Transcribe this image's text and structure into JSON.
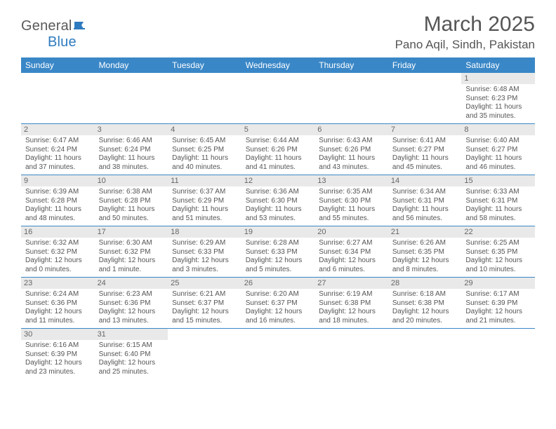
{
  "logo": {
    "text_general": "General",
    "text_blue": "Blue"
  },
  "title": {
    "month": "March 2025",
    "location": "Pano Aqil, Sindh, Pakistan"
  },
  "weekdays": [
    "Sunday",
    "Monday",
    "Tuesday",
    "Wednesday",
    "Thursday",
    "Friday",
    "Saturday"
  ],
  "colors": {
    "header_bg": "#3a87c7",
    "header_text": "#ffffff",
    "daynum_bg": "#e9e9e9",
    "text": "#555555",
    "rule": "#3a87c7"
  },
  "weeks": [
    [
      {
        "empty": true
      },
      {
        "empty": true
      },
      {
        "empty": true
      },
      {
        "empty": true
      },
      {
        "empty": true
      },
      {
        "empty": true
      },
      {
        "day": "1",
        "sunrise": "Sunrise: 6:48 AM",
        "sunset": "Sunset: 6:23 PM",
        "daylight": "Daylight: 11 hours and 35 minutes."
      }
    ],
    [
      {
        "day": "2",
        "sunrise": "Sunrise: 6:47 AM",
        "sunset": "Sunset: 6:24 PM",
        "daylight": "Daylight: 11 hours and 37 minutes."
      },
      {
        "day": "3",
        "sunrise": "Sunrise: 6:46 AM",
        "sunset": "Sunset: 6:24 PM",
        "daylight": "Daylight: 11 hours and 38 minutes."
      },
      {
        "day": "4",
        "sunrise": "Sunrise: 6:45 AM",
        "sunset": "Sunset: 6:25 PM",
        "daylight": "Daylight: 11 hours and 40 minutes."
      },
      {
        "day": "5",
        "sunrise": "Sunrise: 6:44 AM",
        "sunset": "Sunset: 6:26 PM",
        "daylight": "Daylight: 11 hours and 41 minutes."
      },
      {
        "day": "6",
        "sunrise": "Sunrise: 6:43 AM",
        "sunset": "Sunset: 6:26 PM",
        "daylight": "Daylight: 11 hours and 43 minutes."
      },
      {
        "day": "7",
        "sunrise": "Sunrise: 6:41 AM",
        "sunset": "Sunset: 6:27 PM",
        "daylight": "Daylight: 11 hours and 45 minutes."
      },
      {
        "day": "8",
        "sunrise": "Sunrise: 6:40 AM",
        "sunset": "Sunset: 6:27 PM",
        "daylight": "Daylight: 11 hours and 46 minutes."
      }
    ],
    [
      {
        "day": "9",
        "sunrise": "Sunrise: 6:39 AM",
        "sunset": "Sunset: 6:28 PM",
        "daylight": "Daylight: 11 hours and 48 minutes."
      },
      {
        "day": "10",
        "sunrise": "Sunrise: 6:38 AM",
        "sunset": "Sunset: 6:28 PM",
        "daylight": "Daylight: 11 hours and 50 minutes."
      },
      {
        "day": "11",
        "sunrise": "Sunrise: 6:37 AM",
        "sunset": "Sunset: 6:29 PM",
        "daylight": "Daylight: 11 hours and 51 minutes."
      },
      {
        "day": "12",
        "sunrise": "Sunrise: 6:36 AM",
        "sunset": "Sunset: 6:30 PM",
        "daylight": "Daylight: 11 hours and 53 minutes."
      },
      {
        "day": "13",
        "sunrise": "Sunrise: 6:35 AM",
        "sunset": "Sunset: 6:30 PM",
        "daylight": "Daylight: 11 hours and 55 minutes."
      },
      {
        "day": "14",
        "sunrise": "Sunrise: 6:34 AM",
        "sunset": "Sunset: 6:31 PM",
        "daylight": "Daylight: 11 hours and 56 minutes."
      },
      {
        "day": "15",
        "sunrise": "Sunrise: 6:33 AM",
        "sunset": "Sunset: 6:31 PM",
        "daylight": "Daylight: 11 hours and 58 minutes."
      }
    ],
    [
      {
        "day": "16",
        "sunrise": "Sunrise: 6:32 AM",
        "sunset": "Sunset: 6:32 PM",
        "daylight": "Daylight: 12 hours and 0 minutes."
      },
      {
        "day": "17",
        "sunrise": "Sunrise: 6:30 AM",
        "sunset": "Sunset: 6:32 PM",
        "daylight": "Daylight: 12 hours and 1 minute."
      },
      {
        "day": "18",
        "sunrise": "Sunrise: 6:29 AM",
        "sunset": "Sunset: 6:33 PM",
        "daylight": "Daylight: 12 hours and 3 minutes."
      },
      {
        "day": "19",
        "sunrise": "Sunrise: 6:28 AM",
        "sunset": "Sunset: 6:33 PM",
        "daylight": "Daylight: 12 hours and 5 minutes."
      },
      {
        "day": "20",
        "sunrise": "Sunrise: 6:27 AM",
        "sunset": "Sunset: 6:34 PM",
        "daylight": "Daylight: 12 hours and 6 minutes."
      },
      {
        "day": "21",
        "sunrise": "Sunrise: 6:26 AM",
        "sunset": "Sunset: 6:35 PM",
        "daylight": "Daylight: 12 hours and 8 minutes."
      },
      {
        "day": "22",
        "sunrise": "Sunrise: 6:25 AM",
        "sunset": "Sunset: 6:35 PM",
        "daylight": "Daylight: 12 hours and 10 minutes."
      }
    ],
    [
      {
        "day": "23",
        "sunrise": "Sunrise: 6:24 AM",
        "sunset": "Sunset: 6:36 PM",
        "daylight": "Daylight: 12 hours and 11 minutes."
      },
      {
        "day": "24",
        "sunrise": "Sunrise: 6:23 AM",
        "sunset": "Sunset: 6:36 PM",
        "daylight": "Daylight: 12 hours and 13 minutes."
      },
      {
        "day": "25",
        "sunrise": "Sunrise: 6:21 AM",
        "sunset": "Sunset: 6:37 PM",
        "daylight": "Daylight: 12 hours and 15 minutes."
      },
      {
        "day": "26",
        "sunrise": "Sunrise: 6:20 AM",
        "sunset": "Sunset: 6:37 PM",
        "daylight": "Daylight: 12 hours and 16 minutes."
      },
      {
        "day": "27",
        "sunrise": "Sunrise: 6:19 AM",
        "sunset": "Sunset: 6:38 PM",
        "daylight": "Daylight: 12 hours and 18 minutes."
      },
      {
        "day": "28",
        "sunrise": "Sunrise: 6:18 AM",
        "sunset": "Sunset: 6:38 PM",
        "daylight": "Daylight: 12 hours and 20 minutes."
      },
      {
        "day": "29",
        "sunrise": "Sunrise: 6:17 AM",
        "sunset": "Sunset: 6:39 PM",
        "daylight": "Daylight: 12 hours and 21 minutes."
      }
    ],
    [
      {
        "day": "30",
        "sunrise": "Sunrise: 6:16 AM",
        "sunset": "Sunset: 6:39 PM",
        "daylight": "Daylight: 12 hours and 23 minutes."
      },
      {
        "day": "31",
        "sunrise": "Sunrise: 6:15 AM",
        "sunset": "Sunset: 6:40 PM",
        "daylight": "Daylight: 12 hours and 25 minutes."
      },
      {
        "empty": true
      },
      {
        "empty": true
      },
      {
        "empty": true
      },
      {
        "empty": true
      },
      {
        "empty": true
      }
    ]
  ]
}
